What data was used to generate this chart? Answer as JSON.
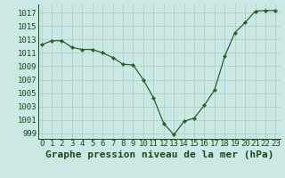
{
  "x": [
    0,
    1,
    2,
    3,
    4,
    5,
    6,
    7,
    8,
    9,
    10,
    11,
    12,
    13,
    14,
    15,
    16,
    17,
    18,
    19,
    20,
    21,
    22,
    23
  ],
  "y": [
    1012.2,
    1012.8,
    1012.8,
    1011.8,
    1011.5,
    1011.5,
    1011.0,
    1010.3,
    1009.3,
    1009.2,
    1007.0,
    1004.3,
    1000.5,
    998.8,
    1000.8,
    1001.3,
    1003.2,
    1005.5,
    1010.5,
    1014.0,
    1015.5,
    1017.2,
    1017.3,
    1017.3
  ],
  "line_color": "#2a5f2a",
  "marker_color": "#2a5f2a",
  "bg_color": "#cce8e4",
  "grid_color": "#aaccc8",
  "text_color": "#1a4a1a",
  "xlabel": "Graphe pression niveau de la mer (hPa)",
  "yticks": [
    999,
    1001,
    1003,
    1005,
    1007,
    1009,
    1011,
    1013,
    1015,
    1017
  ],
  "xticks": [
    0,
    1,
    2,
    3,
    4,
    5,
    6,
    7,
    8,
    9,
    10,
    11,
    12,
    13,
    14,
    15,
    16,
    17,
    18,
    19,
    20,
    21,
    22,
    23
  ],
  "ylim": [
    998.2,
    1018.2
  ],
  "xlim": [
    -0.3,
    23.5
  ],
  "tick_fontsize": 6.5,
  "label_fontsize": 8.0
}
